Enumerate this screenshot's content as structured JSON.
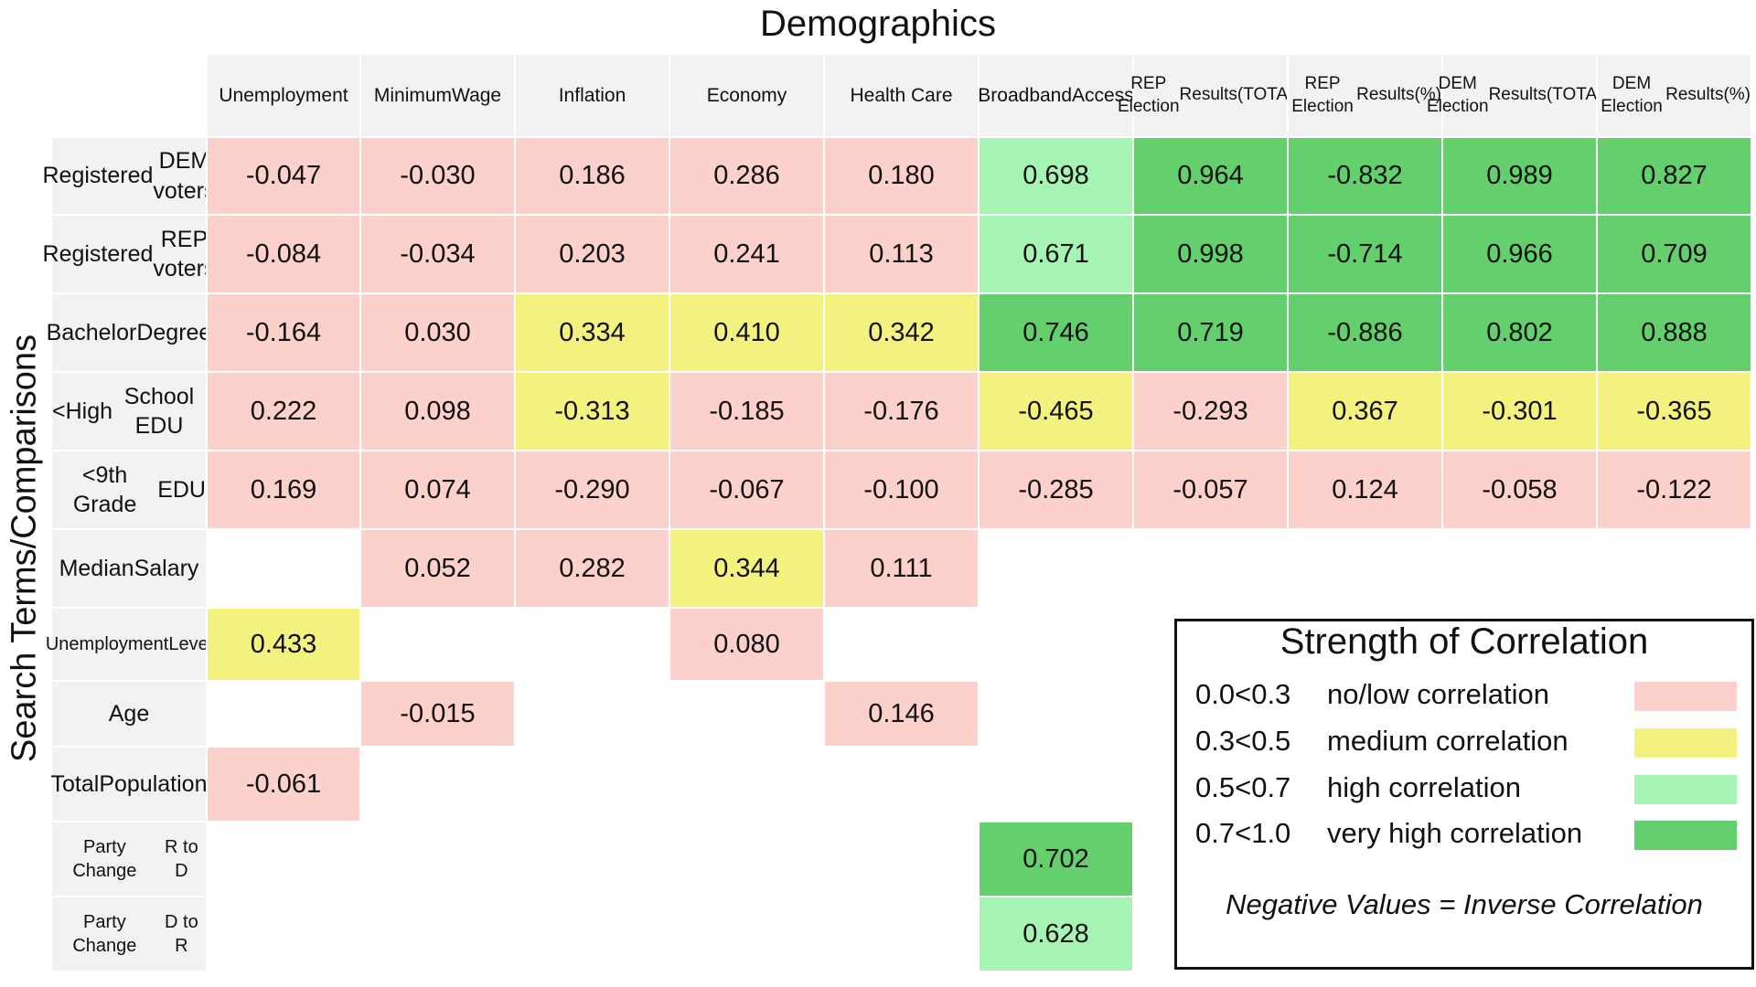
{
  "chart_data": {
    "type": "heatmap",
    "title": "Demographics",
    "ylabel": "Search Terms/Comparisons",
    "columns": [
      [
        "Unemployment"
      ],
      [
        "Minimum",
        "Wage"
      ],
      [
        "Inflation"
      ],
      [
        "Economy"
      ],
      [
        "Health Care"
      ],
      [
        "Broadband",
        "Access"
      ],
      [
        "REP Election",
        "Results(TOTAL)"
      ],
      [
        "REP Election",
        "Results(%)"
      ],
      [
        "DEM Election",
        "Results(TOTAL)"
      ],
      [
        "DEM Election",
        "Results(%)"
      ]
    ],
    "rows": [
      {
        "label": [
          "Registered",
          "DEM voters"
        ],
        "values": [
          "-0.047",
          "-0.030",
          "0.186",
          "0.286",
          "0.180",
          "0.698",
          "0.964",
          "-0.832",
          "0.989",
          "0.827"
        ]
      },
      {
        "label": [
          "Registered",
          "REP voters"
        ],
        "values": [
          "-0.084",
          "-0.034",
          "0.203",
          "0.241",
          "0.113",
          "0.671",
          "0.998",
          "-0.714",
          "0.966",
          "0.709"
        ]
      },
      {
        "label": [
          "Bachelor",
          "Degree"
        ],
        "values": [
          "-0.164",
          "0.030",
          "0.334",
          "0.410",
          "0.342",
          "0.746",
          "0.719",
          "-0.886",
          "0.802",
          "0.888"
        ]
      },
      {
        "label": [
          "<High",
          "School EDU"
        ],
        "values": [
          "0.222",
          "0.098",
          "-0.313",
          "-0.185",
          "-0.176",
          "-0.465",
          "-0.293",
          "0.367",
          "-0.301",
          "-0.365"
        ]
      },
      {
        "label": [
          "<9th Grade",
          "EDU"
        ],
        "values": [
          "0.169",
          "0.074",
          "-0.290",
          "-0.067",
          "-0.100",
          "-0.285",
          "-0.057",
          "0.124",
          "-0.058",
          "-0.122"
        ]
      },
      {
        "label": [
          "Median",
          "Salary"
        ],
        "values": [
          null,
          "0.052",
          "0.282",
          "0.344",
          "0.111",
          null,
          null,
          null,
          null,
          null
        ]
      },
      {
        "label": [
          "Unemployment",
          "Level"
        ],
        "small": true,
        "values": [
          "0.433",
          null,
          null,
          "0.080",
          null,
          null,
          null,
          null,
          null,
          null
        ]
      },
      {
        "label": [
          "Age"
        ],
        "values": [
          null,
          "-0.015",
          null,
          null,
          "0.146",
          null,
          null,
          null,
          null,
          null
        ]
      },
      {
        "label": [
          "Total",
          "Population"
        ],
        "values": [
          "-0.061",
          null,
          null,
          null,
          null,
          null,
          null,
          null,
          null,
          null
        ]
      },
      {
        "label": [
          "Party Change",
          "R to D"
        ],
        "small": true,
        "values": [
          null,
          null,
          null,
          null,
          null,
          "0.702",
          null,
          null,
          null,
          null
        ]
      },
      {
        "label": [
          "Party Change",
          "D to R"
        ],
        "small": true,
        "values": [
          null,
          null,
          null,
          null,
          null,
          "0.628",
          null,
          null,
          null,
          null
        ]
      }
    ],
    "legend": {
      "title": "Strength of Correlation",
      "items": [
        {
          "range": "0.0<0.3",
          "label": "no/low correlation",
          "color": "#fcd0cb",
          "min": 0.0,
          "max": 0.3
        },
        {
          "range": "0.3<0.5",
          "label": "medium correlation",
          "color": "#f4f27e",
          "min": 0.3,
          "max": 0.5
        },
        {
          "range": "0.5<0.7",
          "label": "high correlation",
          "color": "#a6f4b4",
          "min": 0.5,
          "max": 0.7
        },
        {
          "range": "0.7<1.0",
          "label": "very high correlation",
          "color": "#63cf6d",
          "min": 0.7,
          "max": 1.0
        }
      ],
      "note": "Negative Values = Inverse Correlation"
    }
  }
}
